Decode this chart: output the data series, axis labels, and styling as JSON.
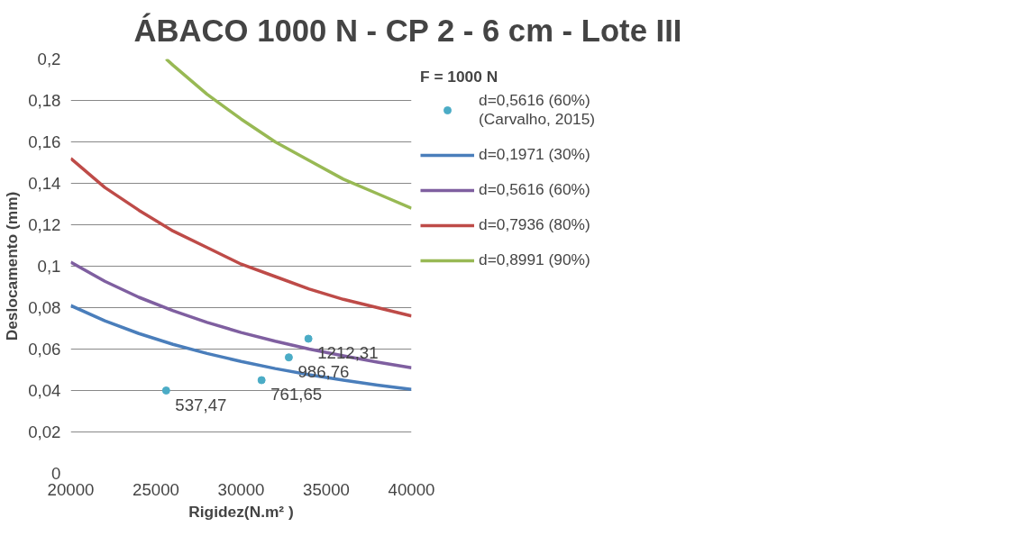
{
  "chart_data": {
    "type": "line",
    "title": "ÁBACO 1000 N - CP 2 - 6 cm - Lote III",
    "xlabel": "Rigidez(N.m² )",
    "ylabel": "Deslocamento (mm)",
    "legend_title": "F = 1000 N",
    "xlim": [
      20000,
      40000
    ],
    "xticks": [
      20000,
      25000,
      30000,
      35000,
      40000
    ],
    "ylim": [
      0,
      0.2
    ],
    "yticks": [
      0,
      {
        "value": 0.02,
        "label": "0,02"
      },
      {
        "value": 0.04,
        "label": "0,04"
      },
      {
        "value": 0.06,
        "label": "0,06"
      },
      {
        "value": 0.08,
        "label": "0,08"
      },
      {
        "value": 0.1,
        "label": "0,1"
      },
      {
        "value": 0.12,
        "label": "0,12"
      },
      {
        "value": 0.14,
        "label": "0,14"
      },
      {
        "value": 0.16,
        "label": "0,16"
      },
      {
        "value": 0.18,
        "label": "0,18"
      },
      {
        "value": 0.2,
        "label": "0,2"
      }
    ],
    "annotations": [
      {
        "text": "537,47",
        "x": 25600,
        "y": 0.04
      },
      {
        "text": "761,65",
        "x": 31200,
        "y": 0.045
      },
      {
        "text": "986,76",
        "x": 32800,
        "y": 0.056
      },
      {
        "text": "1212,31",
        "x": 33950,
        "y": 0.065
      }
    ],
    "grid": "y",
    "legend": "right",
    "marker": "none",
    "line_style": "solid",
    "series": [
      {
        "name": "d=0,5616 (60%)\n(Carvalho, 2015)",
        "type": "scatter",
        "marker": "circle",
        "color": "#4bacc6",
        "x": [
          25600,
          31200,
          32800,
          33950
        ],
        "values": [
          0.04,
          0.045,
          0.056,
          0.065
        ]
      },
      {
        "name": "d=0,1971 (30%)",
        "color": "#4a7ebb",
        "x": [
          20000,
          22000,
          24000,
          26000,
          28000,
          30000,
          32000,
          34000,
          36000,
          38000,
          40000
        ],
        "values": [
          0.081,
          0.0736,
          0.0675,
          0.0623,
          0.0579,
          0.054,
          0.0506,
          0.0476,
          0.045,
          0.0426,
          0.0405
        ]
      },
      {
        "name": "d=0,5616 (60%)",
        "color": "#7f5fa0",
        "x": [
          20000,
          22000,
          24000,
          26000,
          28000,
          30000,
          32000,
          34000,
          36000,
          38000,
          40000
        ],
        "values": [
          0.102,
          0.0927,
          0.085,
          0.0785,
          0.0729,
          0.068,
          0.0638,
          0.06,
          0.0567,
          0.0537,
          0.051
        ]
      },
      {
        "name": "d=0,7936 (80%)",
        "color": "#be4b48",
        "x": [
          20000,
          22000,
          24000,
          26000,
          28000,
          30000,
          32000,
          34000,
          36000,
          38000,
          40000
        ],
        "values": [
          0.152,
          0.138,
          0.127,
          0.117,
          0.109,
          0.101,
          0.095,
          0.089,
          0.084,
          0.08,
          0.076
        ]
      },
      {
        "name": "d=0,8991 (90%)",
        "color": "#98b954",
        "x": [
          25600,
          26000,
          28000,
          30000,
          32000,
          34000,
          36000,
          38000,
          40000
        ],
        "values": [
          0.2,
          0.197,
          0.183,
          0.171,
          0.16,
          0.151,
          0.142,
          0.135,
          0.128
        ]
      }
    ]
  }
}
